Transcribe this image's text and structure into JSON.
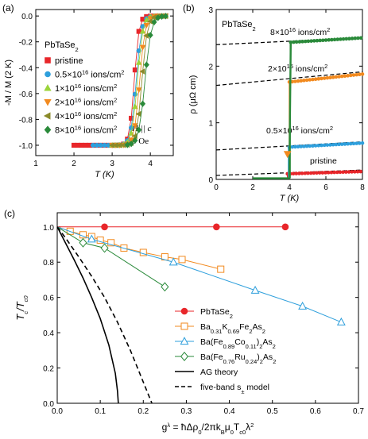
{
  "chart_data": [
    {
      "id": "a",
      "panel_label": "(a)",
      "type": "line",
      "material_label": "PbTaSe",
      "material_sub": "2",
      "ylabel": "-M / M (2 K)",
      "xlabel": "T (K)",
      "xlim": [
        1,
        4.6
      ],
      "ylim": [
        -1.08,
        0.05
      ],
      "xticks": [
        "1",
        "2",
        "3",
        "4"
      ],
      "xtick_values": [
        1,
        2,
        3,
        4
      ],
      "yticks": [
        "0.0",
        "-0.2",
        "-0.4",
        "-0.6",
        "-0.8",
        "-1.0"
      ],
      "ytick_values": [
        0,
        -0.2,
        -0.4,
        -0.6,
        -0.8,
        -1.0
      ],
      "field_direction": "H || c",
      "field_label": "5 Oe",
      "series": [
        {
          "name": "pristine",
          "base": "0",
          "exp": "",
          "unit": "",
          "color": "#e8262a",
          "marker": "square",
          "tc": 3.58,
          "width": 0.06,
          "x_start": 2.0,
          "step": 0.1
        },
        {
          "name": "0.5×10^16 ions/cm^2",
          "base": "0.5×10",
          "exp": "16",
          "unit": " ions/cm",
          "color": "#2e9fdc",
          "marker": "circle",
          "tc": 3.63,
          "width": 0.07,
          "x_start": 2.5,
          "step": 0.1
        },
        {
          "name": "1×10^16 ions/cm^2",
          "base": "1×10",
          "exp": "16",
          "unit": " ions/cm",
          "color": "#9bd43a",
          "marker": "triangle-up",
          "tc": 3.66,
          "width": 0.07,
          "x_start": 3.0,
          "step": 0.1
        },
        {
          "name": "2×10^16 ions/cm^2",
          "base": "2×10",
          "exp": "16",
          "unit": " ions/cm",
          "color": "#f28a1f",
          "marker": "triangle-down",
          "tc": 3.72,
          "width": 0.07,
          "x_start": 3.0,
          "step": 0.1
        },
        {
          "name": "4×10^16 ions/cm^2",
          "base": "4×10",
          "exp": "16",
          "unit": " ions/cm",
          "color": "#8a8a2a",
          "marker": "triangle-left",
          "tc": 3.78,
          "width": 0.07,
          "x_start": 3.0,
          "step": 0.1
        },
        {
          "name": "8×10^16 ions/cm^2",
          "base": "8×10",
          "exp": "16",
          "unit": " ions/cm",
          "color": "#2a8a3a",
          "marker": "diamond",
          "tc": 3.86,
          "width": 0.08,
          "x_start": 3.4,
          "step": 0.1
        }
      ]
    },
    {
      "id": "b",
      "panel_label": "(b)",
      "type": "line",
      "material_label": "PbTaSe",
      "material_sub": "2",
      "ylabel": "ρ (μΩ cm)",
      "xlabel": "T (K)",
      "xlim": [
        0,
        8
      ],
      "ylim": [
        0,
        3
      ],
      "xticks": [
        "0",
        "2",
        "4",
        "6",
        "8"
      ],
      "xtick_values": [
        0,
        2,
        4,
        6,
        8
      ],
      "yticks": [
        "0",
        "1",
        "2",
        "3"
      ],
      "ytick_values": [
        0,
        1,
        2,
        3
      ],
      "series": [
        {
          "name": "pristine",
          "color": "#e8262a",
          "tc": 3.9,
          "x_start": 3.9,
          "y_normal_at_4": 0.1,
          "slope": 0.01,
          "fit_a": 0.07,
          "fit_slope": 0.012
        },
        {
          "name": "0.5×10^16 ions/cm^2",
          "base": "0.5×10",
          "exp": "16",
          "unit": " ions/cm",
          "color": "#2e9fdc",
          "tc": 3.95,
          "x_start": 4.0,
          "y_normal_at_4": 0.57,
          "slope": 0.018,
          "fit_a": 0.52,
          "fit_slope": 0.018
        },
        {
          "name": "2×10^16 ions/cm^2",
          "base": "2×10",
          "exp": "16",
          "unit": " ions/cm",
          "color": "#f28a1f",
          "tc": 4.0,
          "x_start": 4.0,
          "y_normal_at_4": 1.72,
          "slope": 0.035,
          "fit_a": 1.66,
          "fit_slope": 0.03
        },
        {
          "name": "8×10^16 ions/cm^2",
          "base": "8×10",
          "exp": "16",
          "unit": " ions/cm",
          "color": "#2a8a3a",
          "tc": 4.05,
          "x_start": 2.0,
          "y_normal_at_4": 2.42,
          "slope": 0.02,
          "fit_a": 2.38,
          "fit_slope": 0.015
        }
      ]
    },
    {
      "id": "c",
      "panel_label": "(c)",
      "type": "line",
      "xlabel": "g^λ = ħΔρ0/2πkBμ0Tc0λ^2",
      "ylabel": "Tc/Tc0",
      "xlim": [
        0,
        0.7
      ],
      "ylim": [
        0,
        1.08
      ],
      "xticks": [
        "0.0",
        "0.1",
        "0.2",
        "0.3",
        "0.4",
        "0.5",
        "0.6",
        "0.7"
      ],
      "xtick_values": [
        0,
        0.1,
        0.2,
        0.3,
        0.4,
        0.5,
        0.6,
        0.7
      ],
      "yticks": [
        "0.0",
        "0.2",
        "0.4",
        "0.6",
        "0.8",
        "1.0"
      ],
      "ytick_values": [
        0,
        0.2,
        0.4,
        0.6,
        0.8,
        1.0
      ],
      "series": [
        {
          "name": "PbTaSe2",
          "legend_base": "PbTaSe",
          "legend_parts": [
            [
              "PbTaSe",
              ""
            ],
            [
              "2",
              "sub"
            ]
          ],
          "color": "#e8262a",
          "marker": "circle",
          "filled": true,
          "x": [
            0,
            0.11,
            0.37,
            0.53
          ],
          "y": [
            1.0,
            1.0,
            1.0,
            1.0
          ]
        },
        {
          "name": "Ba0.31K0.69Fe2As2",
          "legend_parts": [
            [
              "Ba",
              ""
            ],
            [
              "0.31",
              "sub"
            ],
            [
              "K",
              ""
            ],
            [
              "0.69",
              "sub"
            ],
            [
              "Fe",
              ""
            ],
            [
              "2",
              "sub"
            ],
            [
              "As",
              ""
            ],
            [
              "2",
              "sub"
            ]
          ],
          "color": "#f28a1f",
          "marker": "square",
          "filled": false,
          "x": [
            0,
            0.03,
            0.06,
            0.08,
            0.1,
            0.125,
            0.155,
            0.2,
            0.25,
            0.29,
            0.38
          ],
          "y": [
            1.0,
            0.975,
            0.955,
            0.945,
            0.925,
            0.91,
            0.88,
            0.855,
            0.83,
            0.815,
            0.76
          ]
        },
        {
          "name": "Ba(Fe0.89Co0.11)2As2",
          "legend_parts": [
            [
              "Ba(Fe",
              ""
            ],
            [
              "0.89",
              "sub"
            ],
            [
              "Co",
              ""
            ],
            [
              "0.11",
              "sub"
            ],
            [
              ")",
              ""
            ],
            [
              "2",
              "sub"
            ],
            [
              "As",
              ""
            ],
            [
              "2",
              "sub"
            ]
          ],
          "color": "#2e9fdc",
          "marker": "triangle",
          "filled": false,
          "x": [
            0,
            0.08,
            0.27,
            0.46,
            0.57,
            0.66
          ],
          "y": [
            1.0,
            0.93,
            0.8,
            0.64,
            0.55,
            0.46
          ]
        },
        {
          "name": "Ba(Fe0.76Ru0.24)2As2",
          "legend_parts": [
            [
              "Ba(Fe",
              ""
            ],
            [
              "0.76",
              "sub"
            ],
            [
              "Ru",
              ""
            ],
            [
              "0.24",
              "sub"
            ],
            [
              ")",
              ""
            ],
            [
              "2",
              "sub"
            ],
            [
              "As",
              ""
            ],
            [
              "2",
              "sub"
            ]
          ],
          "color": "#2a8a3a",
          "marker": "diamond",
          "filled": false,
          "x": [
            0,
            0.06,
            0.11,
            0.25
          ],
          "y": [
            1.0,
            0.91,
            0.88,
            0.66
          ]
        },
        {
          "name": "AG theory",
          "legend_parts": [
            [
              "AG theory",
              ""
            ]
          ],
          "color": "#000000",
          "style": "solid",
          "x": [
            0,
            0.02,
            0.04,
            0.06,
            0.08,
            0.1,
            0.12,
            0.135,
            0.14,
            0.142
          ],
          "y": [
            1.0,
            0.905,
            0.81,
            0.71,
            0.6,
            0.48,
            0.33,
            0.17,
            0.07,
            0.0
          ]
        },
        {
          "name": "five-band s± model",
          "legend_parts": [
            [
              "five-band s",
              ""
            ],
            [
              "±",
              "sub"
            ],
            [
              " model",
              ""
            ]
          ],
          "color": "#000000",
          "style": "dashed",
          "x": [
            0,
            0.02,
            0.05,
            0.08,
            0.11,
            0.14,
            0.17,
            0.2,
            0.22
          ],
          "y": [
            1.0,
            0.935,
            0.83,
            0.72,
            0.6,
            0.46,
            0.3,
            0.12,
            0.0
          ]
        }
      ]
    }
  ]
}
